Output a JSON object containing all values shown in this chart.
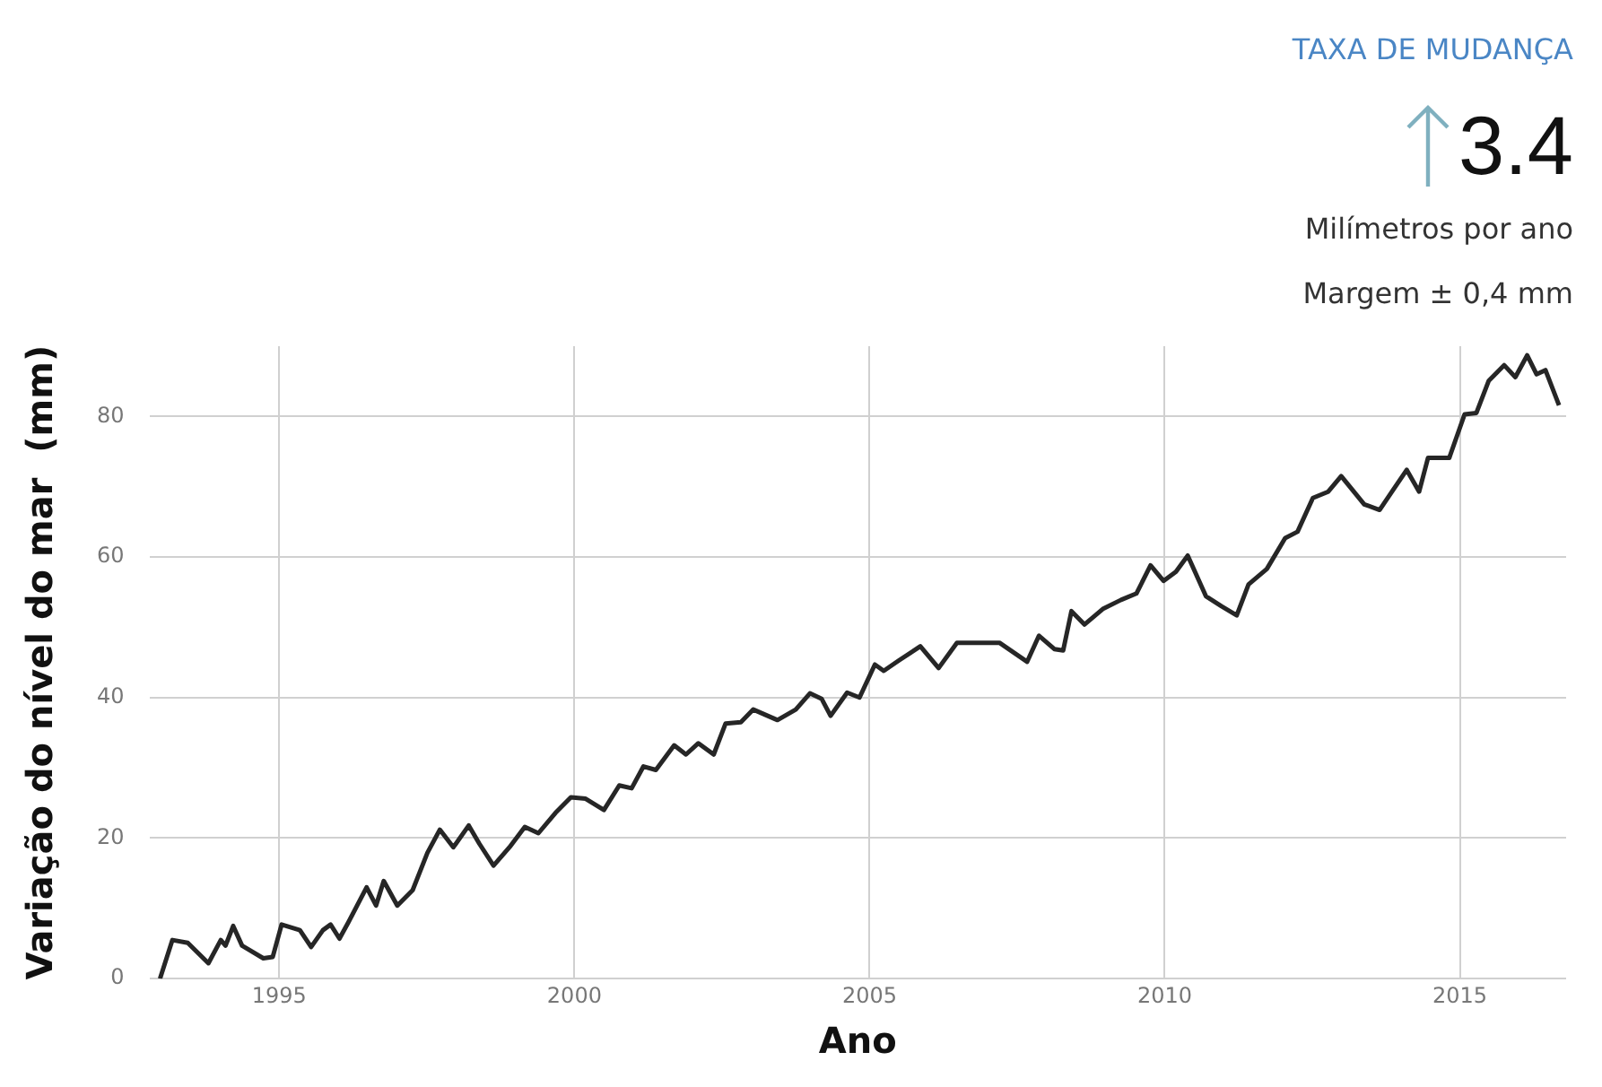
{
  "chart_data": {
    "type": "line",
    "xlabel": "Ano",
    "ylabel": "Variação do nível do mar  (mm)",
    "annotations": [
      "TAXA DE MUDANÇA",
      "3.4",
      "Milímetros por ano",
      "Margem ± 0,4 mm"
    ],
    "x": [
      1992.98,
      1993.19,
      1993.45,
      1993.8,
      1994.01,
      1994.09,
      1994.22,
      1994.37,
      1994.73,
      1994.89,
      1995.04,
      1995.35,
      1995.54,
      1995.74,
      1995.87,
      1996.02,
      1996.17,
      1996.48,
      1996.64,
      1996.77,
      1997.0,
      1997.26,
      1997.51,
      1997.72,
      1997.95,
      1998.21,
      1998.39,
      1998.63,
      1998.9,
      1999.16,
      1999.39,
      1999.68,
      1999.94,
      2000.19,
      2000.5,
      2000.76,
      2000.97,
      2001.17,
      2001.38,
      2001.69,
      2001.89,
      2002.1,
      2002.36,
      2002.56,
      2002.82,
      2003.03,
      2003.44,
      2003.75,
      2003.99,
      2004.19,
      2004.34,
      2004.62,
      2004.83,
      2005.09,
      2005.24,
      2005.5,
      2005.86,
      2006.17,
      2006.48,
      2006.79,
      2007.2,
      2007.67,
      2007.87,
      2008.13,
      2008.28,
      2008.42,
      2008.64,
      2008.95,
      2009.26,
      2009.52,
      2009.76,
      2009.98,
      2010.19,
      2010.39,
      2010.7,
      2010.96,
      2011.22,
      2011.42,
      2011.73,
      2012.04,
      2012.25,
      2012.51,
      2012.77,
      2012.99,
      2013.38,
      2013.64,
      2013.85,
      2014.1,
      2014.31,
      2014.46,
      2014.82,
      2015.08,
      2015.28,
      2015.49,
      2015.75,
      2015.94,
      2016.14,
      2016.3,
      2016.45,
      2016.68
    ],
    "series": [
      {
        "color": "#262626",
        "values": [
          0,
          5.5,
          5.1,
          2.2,
          5.5,
          4.7,
          7.5,
          4.7,
          2.9,
          3.1,
          7.7,
          6.9,
          4.5,
          6.9,
          7.7,
          5.7,
          8,
          13,
          10.4,
          13.9,
          10.4,
          12.6,
          17.9,
          21.2,
          18.7,
          21.8,
          19.2,
          16.1,
          18.7,
          21.6,
          20.7,
          23.6,
          25.8,
          25.6,
          24,
          27.5,
          27.1,
          30.2,
          29.7,
          33.2,
          31.9,
          33.5,
          31.9,
          36.3,
          36.5,
          38.3,
          36.8,
          38.3,
          40.6,
          39.8,
          37.4,
          40.7,
          40,
          44.7,
          43.8,
          45.3,
          47.3,
          44.2,
          47.8,
          47.8,
          47.8,
          45.1,
          48.8,
          46.9,
          46.7,
          52.3,
          50.4,
          52.6,
          53.9,
          54.8,
          58.8,
          56.6,
          57.9,
          60.2,
          54.4,
          53,
          51.7,
          56.1,
          58.3,
          62.7,
          63.6,
          68.4,
          69.3,
          71.5,
          67.5,
          66.7,
          69.3,
          72.4,
          69.3,
          74.1,
          74.1,
          80.3,
          80.5,
          85.1,
          87.3,
          85.6,
          88.7,
          86,
          86.6,
          81.6
        ]
      }
    ],
    "xlim": [
      1992.8,
      2016.8
    ],
    "xticks": [
      1995,
      2000,
      2005,
      2010,
      2015
    ],
    "ylim": [
      0,
      90
    ],
    "yticks": [
      0,
      20,
      40,
      60,
      80
    ],
    "grid": true,
    "legend": false,
    "marker": "none",
    "line_style": "solid"
  }
}
